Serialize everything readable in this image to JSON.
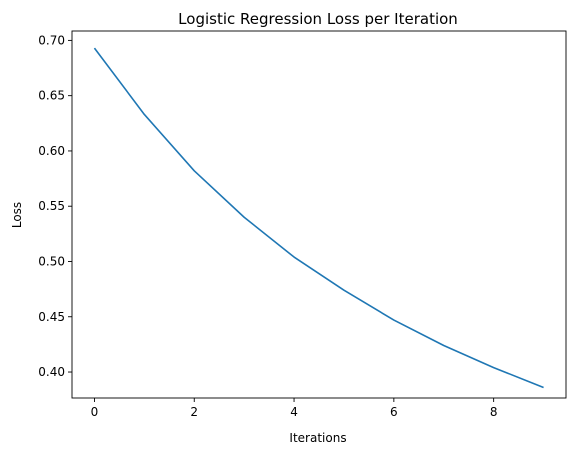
{
  "chart_data": {
    "type": "line",
    "title": "Logistic Regression Loss per Iteration",
    "xlabel": "Iterations",
    "ylabel": "Loss",
    "xlim": [
      -0.45,
      9.45
    ],
    "ylim": [
      0.3765,
      0.7085
    ],
    "xticks": [
      0,
      2,
      4,
      6,
      8
    ],
    "xtick_labels": [
      "0",
      "2",
      "4",
      "6",
      "8"
    ],
    "yticks": [
      0.4,
      0.45,
      0.5,
      0.55,
      0.6,
      0.65,
      0.7
    ],
    "ytick_labels": [
      "0.40",
      "0.45",
      "0.50",
      "0.55",
      "0.60",
      "0.65",
      "0.70"
    ],
    "grid": false,
    "series": [
      {
        "color": "#1f77b4",
        "x": [
          0,
          1,
          2,
          3,
          4,
          5,
          6,
          7,
          8,
          9
        ],
        "y": [
          0.693,
          0.633,
          0.582,
          0.54,
          0.504,
          0.474,
          0.447,
          0.424,
          0.404,
          0.386
        ]
      }
    ]
  }
}
